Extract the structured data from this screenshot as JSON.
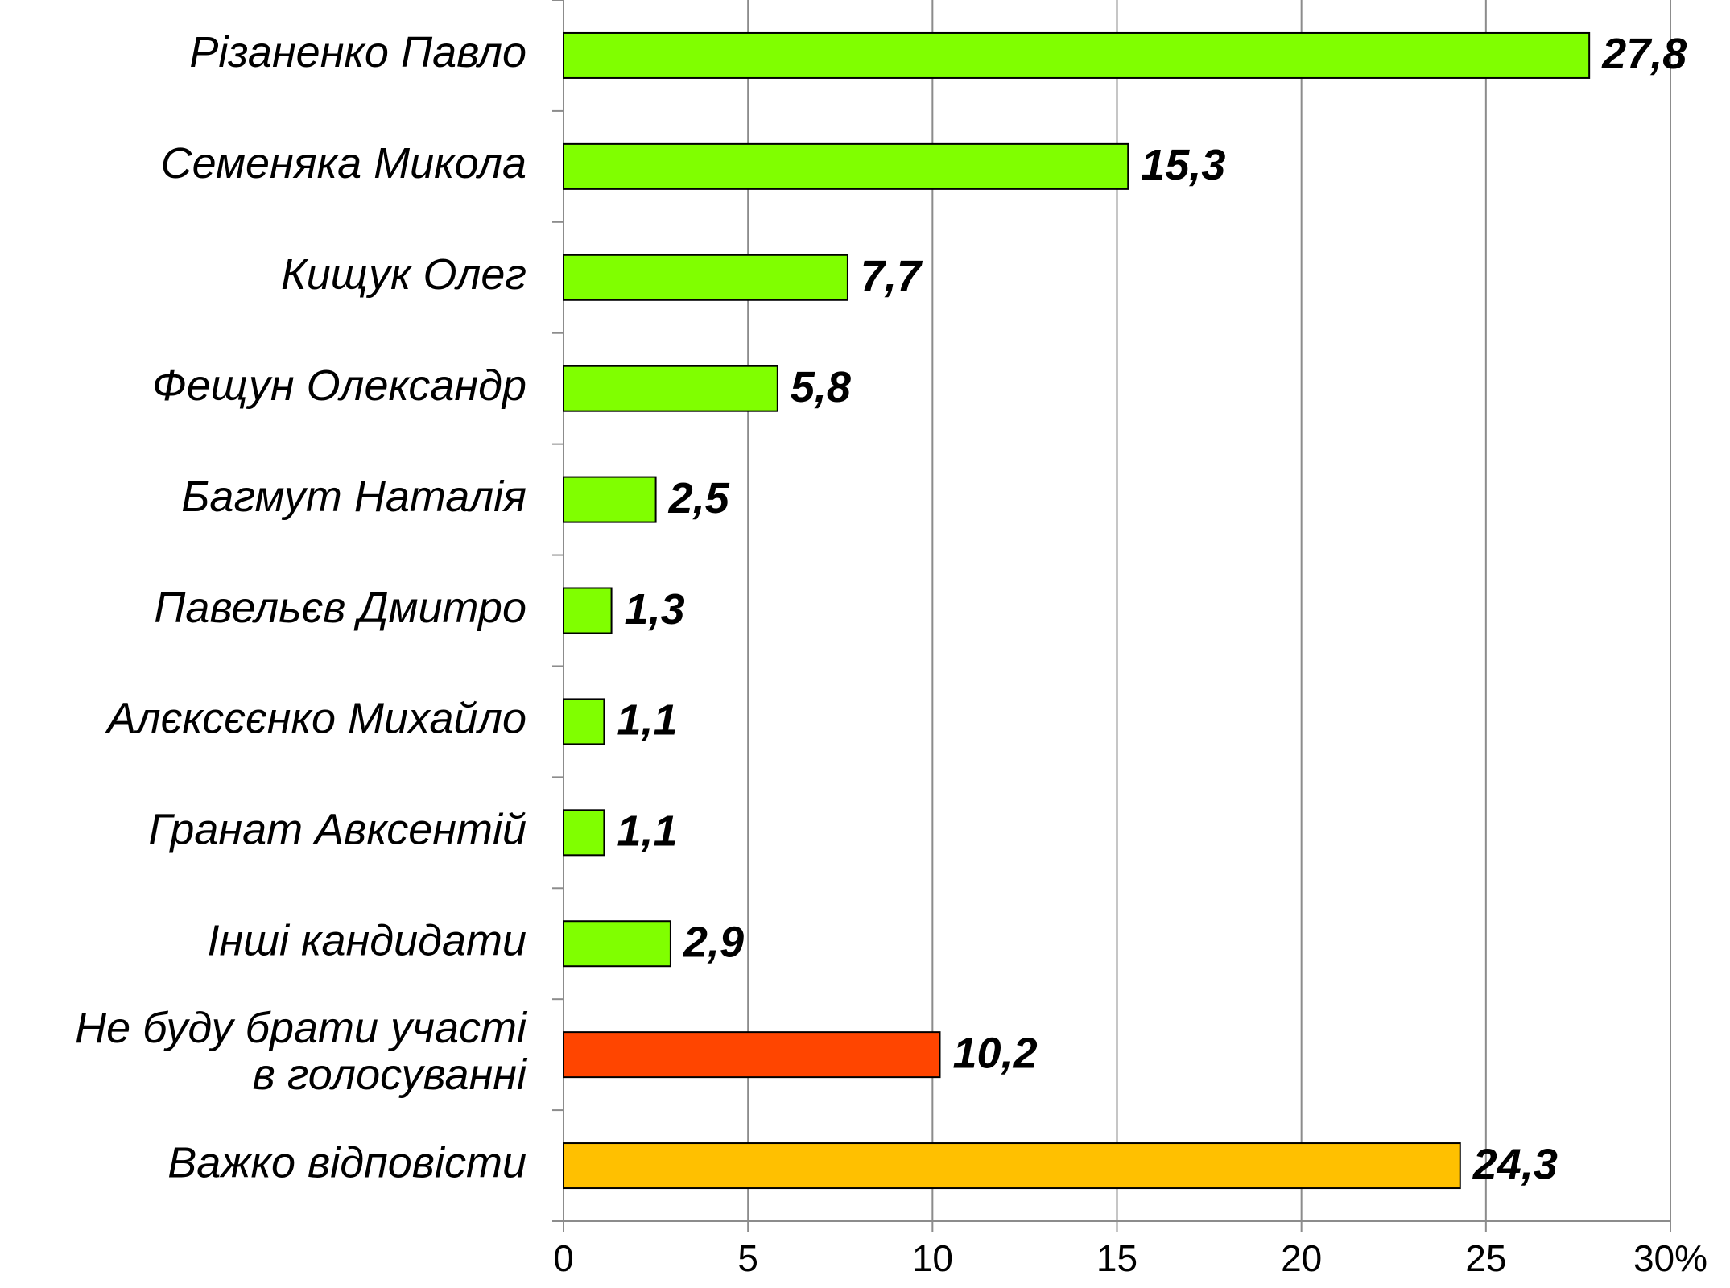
{
  "chart_data": {
    "type": "bar",
    "orientation": "horizontal",
    "categories": [
      "Різаненко Павло",
      "Семеняка Микола",
      "Кищук Олег",
      "Фещун Олександр",
      "Багмут Наталія",
      "Павельєв Дмитро",
      "Алєксєєнко Михайло",
      "Гранат Авксентій",
      "Інші кандидати",
      "Не буду брати участі\nв голосуванні",
      "Важко відповісти"
    ],
    "values": [
      27.8,
      15.3,
      7.7,
      5.8,
      2.5,
      1.3,
      1.1,
      1.1,
      2.9,
      10.2,
      24.3
    ],
    "value_labels": [
      "27,8",
      "15,3",
      "7,7",
      "5,8",
      "2,5",
      "1,3",
      "1,1",
      "1,1",
      "2,9",
      "10,2",
      "24,3"
    ],
    "colors": [
      "#80ff00",
      "#80ff00",
      "#80ff00",
      "#80ff00",
      "#80ff00",
      "#80ff00",
      "#80ff00",
      "#80ff00",
      "#80ff00",
      "#ff4500",
      "#ffc000"
    ],
    "xlim": [
      0,
      30
    ],
    "xticks": [
      0,
      5,
      10,
      15,
      20,
      25,
      {
        "value": 30,
        "label": "30%"
      }
    ],
    "grid": true
  }
}
